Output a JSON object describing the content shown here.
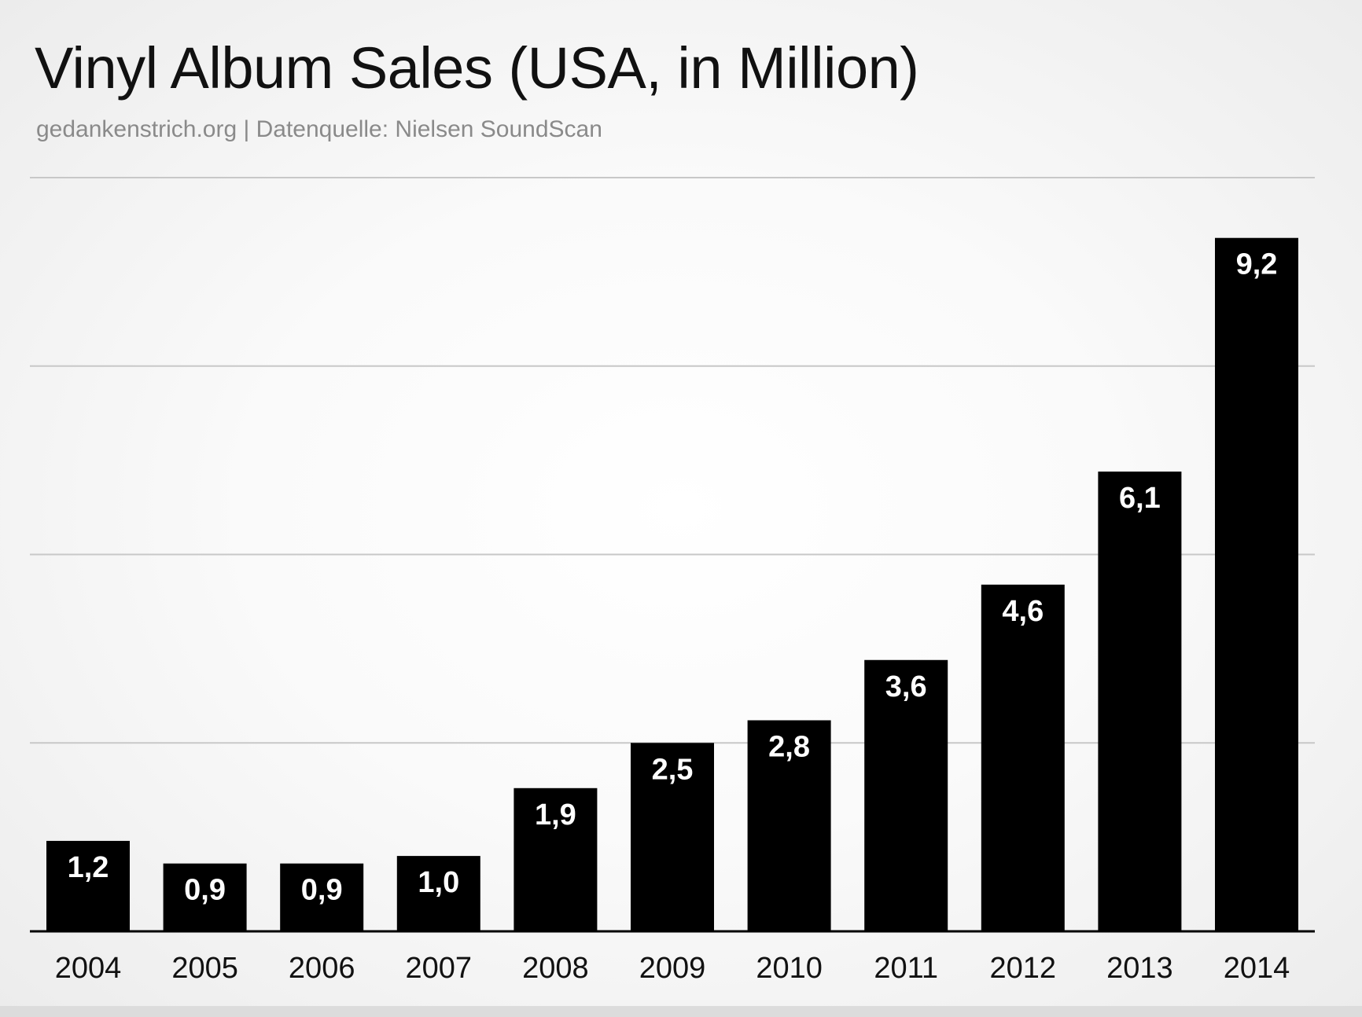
{
  "title": "Vinyl Album Sales (USA, in Million)",
  "subtitle": "gedankenstrich.org | Datenquelle: Nielsen SoundScan",
  "colors": {
    "bar": "#000000",
    "bar_label": "#ffffff",
    "gridline": "#c8c8c8",
    "axis": "#000000"
  },
  "chart_data": {
    "type": "bar",
    "title": "Vinyl Album Sales (USA, in Million)",
    "categories": [
      "2004",
      "2005",
      "2006",
      "2007",
      "2008",
      "2009",
      "2010",
      "2011",
      "2012",
      "2013",
      "2014"
    ],
    "values": [
      1.2,
      0.9,
      0.9,
      1.0,
      1.9,
      2.5,
      2.8,
      3.6,
      4.6,
      6.1,
      9.2
    ],
    "data_labels": [
      "1,2",
      "0,9",
      "0,9",
      "1,0",
      "1,9",
      "2,5",
      "2,8",
      "3,6",
      "4,6",
      "6,1",
      "9,2"
    ],
    "xlabel": "",
    "ylabel": "",
    "ylim": [
      0,
      10
    ],
    "grid_values": [
      2.5,
      5,
      7.5,
      10
    ],
    "grid": true,
    "legend": "none"
  }
}
